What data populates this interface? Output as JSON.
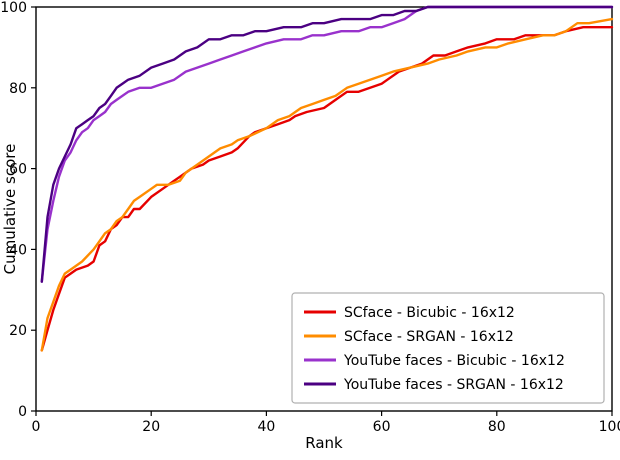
{
  "chart_data": {
    "type": "line",
    "title": "",
    "xlabel": "Rank",
    "ylabel": "Cumulative score",
    "xlim": [
      0,
      100
    ],
    "ylim": [
      0,
      100
    ],
    "xticks": [
      0,
      20,
      40,
      60,
      80,
      100
    ],
    "yticks": [
      0,
      20,
      40,
      60,
      80,
      100
    ],
    "grid": false,
    "legend_position": "lower right",
    "series": [
      {
        "name": "SCface - Bicubic - 16x12",
        "color": "#e60000",
        "points": [
          [
            1,
            15
          ],
          [
            2,
            20
          ],
          [
            3,
            25
          ],
          [
            4,
            29
          ],
          [
            5,
            33
          ],
          [
            6,
            34
          ],
          [
            7,
            35
          ],
          [
            9,
            36
          ],
          [
            10,
            37
          ],
          [
            11,
            41
          ],
          [
            12,
            42
          ],
          [
            13,
            45
          ],
          [
            14,
            46
          ],
          [
            15,
            48
          ],
          [
            16,
            48
          ],
          [
            17,
            50
          ],
          [
            18,
            50
          ],
          [
            20,
            53
          ],
          [
            22,
            55
          ],
          [
            24,
            57
          ],
          [
            25,
            58
          ],
          [
            27,
            60
          ],
          [
            29,
            61
          ],
          [
            30,
            62
          ],
          [
            32,
            63
          ],
          [
            34,
            64
          ],
          [
            35,
            65
          ],
          [
            37,
            68
          ],
          [
            38,
            69
          ],
          [
            40,
            70
          ],
          [
            42,
            71
          ],
          [
            44,
            72
          ],
          [
            45,
            73
          ],
          [
            47,
            74
          ],
          [
            50,
            75
          ],
          [
            52,
            77
          ],
          [
            54,
            79
          ],
          [
            56,
            79
          ],
          [
            58,
            80
          ],
          [
            60,
            81
          ],
          [
            61,
            82
          ],
          [
            63,
            84
          ],
          [
            65,
            85
          ],
          [
            67,
            86
          ],
          [
            69,
            88
          ],
          [
            71,
            88
          ],
          [
            73,
            89
          ],
          [
            75,
            90
          ],
          [
            78,
            91
          ],
          [
            80,
            92
          ],
          [
            83,
            92
          ],
          [
            85,
            93
          ],
          [
            88,
            93
          ],
          [
            90,
            93
          ],
          [
            92,
            94
          ],
          [
            95,
            95
          ],
          [
            100,
            95
          ]
        ]
      },
      {
        "name": "SCface - SRGAN - 16x12",
        "color": "#ff8c00",
        "points": [
          [
            1,
            15
          ],
          [
            2,
            23
          ],
          [
            3,
            27
          ],
          [
            4,
            31
          ],
          [
            5,
            34
          ],
          [
            6,
            35
          ],
          [
            7,
            36
          ],
          [
            8,
            37
          ],
          [
            10,
            40
          ],
          [
            11,
            42
          ],
          [
            12,
            44
          ],
          [
            13,
            45
          ],
          [
            14,
            47
          ],
          [
            15,
            48
          ],
          [
            16,
            50
          ],
          [
            17,
            52
          ],
          [
            18,
            53
          ],
          [
            20,
            55
          ],
          [
            21,
            56
          ],
          [
            23,
            56
          ],
          [
            25,
            57
          ],
          [
            26,
            59
          ],
          [
            28,
            61
          ],
          [
            30,
            63
          ],
          [
            32,
            65
          ],
          [
            34,
            66
          ],
          [
            35,
            67
          ],
          [
            37,
            68
          ],
          [
            40,
            70
          ],
          [
            42,
            72
          ],
          [
            44,
            73
          ],
          [
            46,
            75
          ],
          [
            48,
            76
          ],
          [
            50,
            77
          ],
          [
            52,
            78
          ],
          [
            54,
            80
          ],
          [
            56,
            81
          ],
          [
            58,
            82
          ],
          [
            60,
            83
          ],
          [
            62,
            84
          ],
          [
            65,
            85
          ],
          [
            68,
            86
          ],
          [
            70,
            87
          ],
          [
            73,
            88
          ],
          [
            75,
            89
          ],
          [
            78,
            90
          ],
          [
            80,
            90
          ],
          [
            82,
            91
          ],
          [
            85,
            92
          ],
          [
            88,
            93
          ],
          [
            90,
            93
          ],
          [
            92,
            94
          ],
          [
            94,
            96
          ],
          [
            96,
            96
          ],
          [
            100,
            97
          ]
        ]
      },
      {
        "name": "YouTube faces - Bicubic - 16x12",
        "color": "#9932cc",
        "points": [
          [
            1,
            32
          ],
          [
            2,
            45
          ],
          [
            3,
            52
          ],
          [
            4,
            58
          ],
          [
            5,
            62
          ],
          [
            6,
            64
          ],
          [
            7,
            67
          ],
          [
            8,
            69
          ],
          [
            9,
            70
          ],
          [
            10,
            72
          ],
          [
            11,
            73
          ],
          [
            12,
            74
          ],
          [
            13,
            76
          ],
          [
            14,
            77
          ],
          [
            16,
            79
          ],
          [
            18,
            80
          ],
          [
            20,
            80
          ],
          [
            22,
            81
          ],
          [
            24,
            82
          ],
          [
            26,
            84
          ],
          [
            28,
            85
          ],
          [
            30,
            86
          ],
          [
            32,
            87
          ],
          [
            34,
            88
          ],
          [
            36,
            89
          ],
          [
            38,
            90
          ],
          [
            40,
            91
          ],
          [
            43,
            92
          ],
          [
            46,
            92
          ],
          [
            48,
            93
          ],
          [
            50,
            93
          ],
          [
            53,
            94
          ],
          [
            56,
            94
          ],
          [
            58,
            95
          ],
          [
            60,
            95
          ],
          [
            62,
            96
          ],
          [
            64,
            97
          ],
          [
            66,
            99
          ],
          [
            68,
            100
          ],
          [
            100,
            100
          ]
        ]
      },
      {
        "name": "YouTube faces - SRGAN - 16x12",
        "color": "#4b0082",
        "points": [
          [
            1,
            32
          ],
          [
            2,
            48
          ],
          [
            3,
            56
          ],
          [
            4,
            60
          ],
          [
            5,
            63
          ],
          [
            6,
            66
          ],
          [
            7,
            70
          ],
          [
            8,
            71
          ],
          [
            9,
            72
          ],
          [
            10,
            73
          ],
          [
            11,
            75
          ],
          [
            12,
            76
          ],
          [
            13,
            78
          ],
          [
            14,
            80
          ],
          [
            15,
            81
          ],
          [
            16,
            82
          ],
          [
            18,
            83
          ],
          [
            20,
            85
          ],
          [
            22,
            86
          ],
          [
            24,
            87
          ],
          [
            26,
            89
          ],
          [
            28,
            90
          ],
          [
            30,
            92
          ],
          [
            32,
            92
          ],
          [
            34,
            93
          ],
          [
            36,
            93
          ],
          [
            38,
            94
          ],
          [
            40,
            94
          ],
          [
            43,
            95
          ],
          [
            46,
            95
          ],
          [
            48,
            96
          ],
          [
            50,
            96
          ],
          [
            53,
            97
          ],
          [
            56,
            97
          ],
          [
            58,
            97
          ],
          [
            60,
            98
          ],
          [
            62,
            98
          ],
          [
            64,
            99
          ],
          [
            66,
            99
          ],
          [
            68,
            100
          ],
          [
            100,
            100
          ]
        ]
      }
    ]
  }
}
